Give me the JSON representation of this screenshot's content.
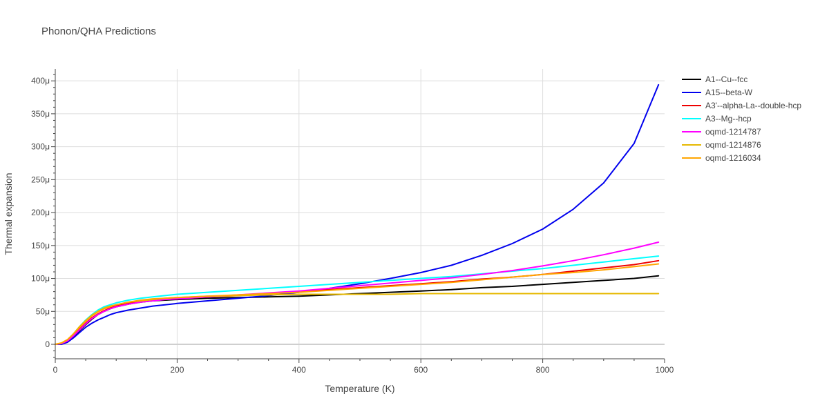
{
  "chart_data": {
    "type": "line",
    "title": "Phonon/QHA Predictions",
    "xlabel": "Temperature (K)",
    "ylabel": "Thermal expansion",
    "xlim": [
      0,
      1000
    ],
    "ylim": [
      -2.2e-05,
      0.000418
    ],
    "x_ticks": [
      0,
      200,
      400,
      600,
      800,
      1000
    ],
    "x_tick_labels": [
      "0",
      "200",
      "400",
      "600",
      "800",
      "1000"
    ],
    "y_ticks": [
      0,
      5e-05,
      0.0001,
      0.00015,
      0.0002,
      0.00025,
      0.0003,
      0.00035,
      0.0004
    ],
    "y_tick_labels": [
      "0",
      "50μ",
      "100μ",
      "150μ",
      "200μ",
      "250μ",
      "300μ",
      "350μ",
      "400μ"
    ],
    "grid": true,
    "legend_position": "top-right",
    "x": [
      0,
      10,
      20,
      30,
      40,
      50,
      60,
      70,
      80,
      90,
      100,
      120,
      140,
      160,
      180,
      200,
      250,
      300,
      350,
      400,
      450,
      500,
      550,
      600,
      650,
      700,
      750,
      800,
      850,
      900,
      950,
      990
    ],
    "series": [
      {
        "name": "A1--Cu--fcc",
        "color": "#000000",
        "values": [
          0,
          1e-06,
          4e-06,
          1.2e-05,
          2.1e-05,
          3e-05,
          3.8e-05,
          4.5e-05,
          5e-05,
          5.4e-05,
          5.7e-05,
          6.1e-05,
          6.4e-05,
          6.6e-05,
          6.7e-05,
          6.8e-05,
          7e-05,
          7.1e-05,
          7.2e-05,
          7.3e-05,
          7.5e-05,
          7.7e-05,
          7.9e-05,
          8.1e-05,
          8.3e-05,
          8.6e-05,
          8.8e-05,
          9.1e-05,
          9.4e-05,
          9.7e-05,
          0.0001,
          0.000104
        ]
      },
      {
        "name": "A15--beta-W",
        "color": "#0000ee",
        "values": [
          0,
          0,
          3e-06,
          1e-05,
          1.8e-05,
          2.6e-05,
          3.2e-05,
          3.7e-05,
          4.1e-05,
          4.5e-05,
          4.8e-05,
          5.2e-05,
          5.5e-05,
          5.8e-05,
          6e-05,
          6.2e-05,
          6.6e-05,
          7e-05,
          7.4e-05,
          7.9e-05,
          8.5e-05,
          9.2e-05,
          0.0001,
          0.000109,
          0.00012,
          0.000135,
          0.000153,
          0.000175,
          0.000205,
          0.000245,
          0.000305,
          0.000394
        ]
      },
      {
        "name": "A3'--alpha-La--double-hcp",
        "color": "#ee0000",
        "values": [
          0,
          1e-06,
          5e-06,
          1.3e-05,
          2.3e-05,
          3.2e-05,
          4e-05,
          4.6e-05,
          5.1e-05,
          5.5e-05,
          5.8e-05,
          6.2e-05,
          6.5e-05,
          6.7e-05,
          6.8e-05,
          6.9e-05,
          7.2e-05,
          7.4e-05,
          7.7e-05,
          8e-05,
          8.3e-05,
          8.6e-05,
          8.9e-05,
          9.2e-05,
          9.5e-05,
          9.9e-05,
          0.000102,
          0.000106,
          0.000111,
          0.000116,
          0.000121,
          0.000127
        ]
      },
      {
        "name": "A3--Mg--hcp",
        "color": "#00ffff",
        "values": [
          0,
          1e-06,
          6e-06,
          1.6e-05,
          2.7e-05,
          3.7e-05,
          4.5e-05,
          5.2e-05,
          5.7e-05,
          6e-05,
          6.3e-05,
          6.7e-05,
          7e-05,
          7.2e-05,
          7.4e-05,
          7.6e-05,
          7.9e-05,
          8.2e-05,
          8.5e-05,
          8.8e-05,
          9.1e-05,
          9.4e-05,
          9.7e-05,
          0.0001,
          0.000103,
          0.000107,
          0.000111,
          0.000115,
          0.00012,
          0.000125,
          0.00013,
          0.000134
        ]
      },
      {
        "name": "oqmd-1214787",
        "color": "#ff00ff",
        "values": [
          0,
          1e-06,
          5e-06,
          1.3e-05,
          2.2e-05,
          3.1e-05,
          3.9e-05,
          4.5e-05,
          5e-05,
          5.4e-05,
          5.7e-05,
          6.1e-05,
          6.4e-05,
          6.6e-05,
          6.8e-05,
          6.9e-05,
          7.2e-05,
          7.5e-05,
          7.8e-05,
          8.1e-05,
          8.5e-05,
          8.9e-05,
          9.3e-05,
          9.7e-05,
          0.000101,
          0.000106,
          0.000112,
          0.000119,
          0.000127,
          0.000136,
          0.000146,
          0.000155
        ]
      },
      {
        "name": "oqmd-1214876",
        "color": "#e6b800",
        "values": [
          0,
          2e-06,
          7e-06,
          1.6e-05,
          2.7e-05,
          3.6e-05,
          4.4e-05,
          5e-05,
          5.5e-05,
          5.8e-05,
          6e-05,
          6.4e-05,
          6.6e-05,
          6.8e-05,
          7e-05,
          7.1e-05,
          7.3e-05,
          7.4e-05,
          7.5e-05,
          7.6e-05,
          7.6e-05,
          7.6e-05,
          7.6e-05,
          7.7e-05,
          7.7e-05,
          7.7e-05,
          7.7e-05,
          7.7e-05,
          7.7e-05,
          7.7e-05,
          7.7e-05,
          7.7e-05
        ]
      },
      {
        "name": "oqmd-1216034",
        "color": "#ffa500",
        "values": [
          0,
          2e-06,
          7e-06,
          1.6e-05,
          2.6e-05,
          3.5e-05,
          4.3e-05,
          4.9e-05,
          5.4e-05,
          5.7e-05,
          6e-05,
          6.4e-05,
          6.7e-05,
          6.9e-05,
          7e-05,
          7.1e-05,
          7.3e-05,
          7.5e-05,
          7.7e-05,
          7.9e-05,
          8.2e-05,
          8.5e-05,
          8.8e-05,
          9.1e-05,
          9.4e-05,
          9.8e-05,
          0.000102,
          0.000106,
          0.000109,
          0.000113,
          0.000118,
          0.000122
        ]
      }
    ]
  }
}
